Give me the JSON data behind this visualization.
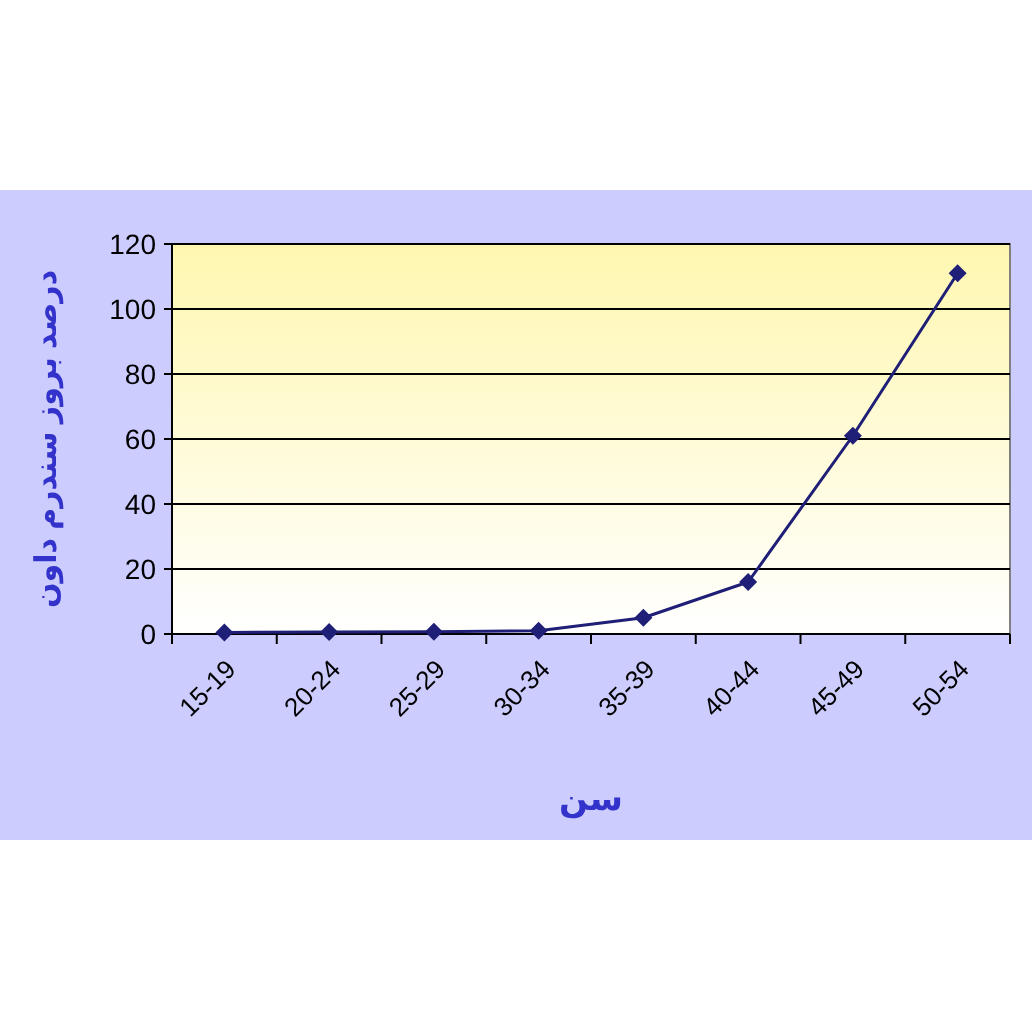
{
  "chart_data": {
    "type": "line",
    "xlabel": "سن",
    "ylabel": "درصد بروز سندرم داون",
    "categories": [
      "15-19",
      "20-24",
      "25-29",
      "30-34",
      "35-39",
      "40-44",
      "45-49",
      "50-54"
    ],
    "series": [
      {
        "color": "#1f1f78",
        "values": [
          0.5,
          0.6,
          0.7,
          1,
          5,
          16,
          61,
          111
        ]
      }
    ],
    "ylim": [
      0,
      120
    ],
    "yticks": [
      0,
      20,
      40,
      60,
      80,
      100,
      120
    ],
    "grid": "y",
    "marker": "diamond"
  }
}
